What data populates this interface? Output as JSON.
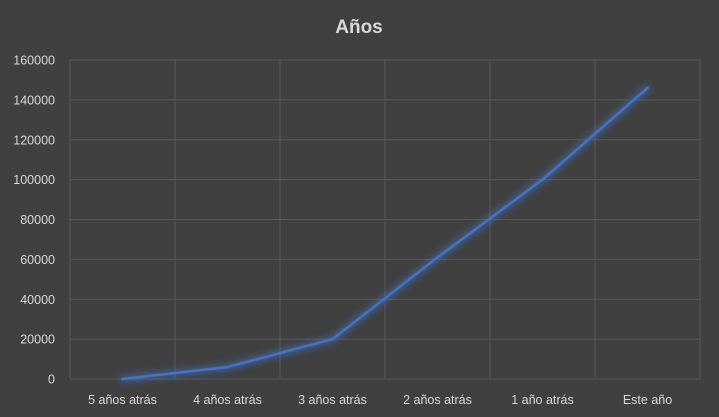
{
  "chart_data": {
    "type": "line",
    "title": "Años",
    "categories": [
      "5 años atrás",
      "4 años atrás",
      "3 años atrás",
      "2 años atrás",
      "1 año atrás",
      "Este año"
    ],
    "series": [
      {
        "values": [
          0,
          6000,
          20000,
          61000,
          100000,
          146000
        ]
      }
    ],
    "xlabel": "",
    "ylabel": "",
    "ylim": [
      0,
      160000
    ],
    "yticks": [
      "0",
      "20000",
      "40000",
      "60000",
      "80000",
      "100000",
      "120000",
      "140000",
      "160000"
    ],
    "grid": true,
    "legend": "none",
    "colors": {
      "background": "#404040",
      "line": "#4472c4",
      "gridline": "#595959",
      "text": "#d9d9d9"
    }
  }
}
